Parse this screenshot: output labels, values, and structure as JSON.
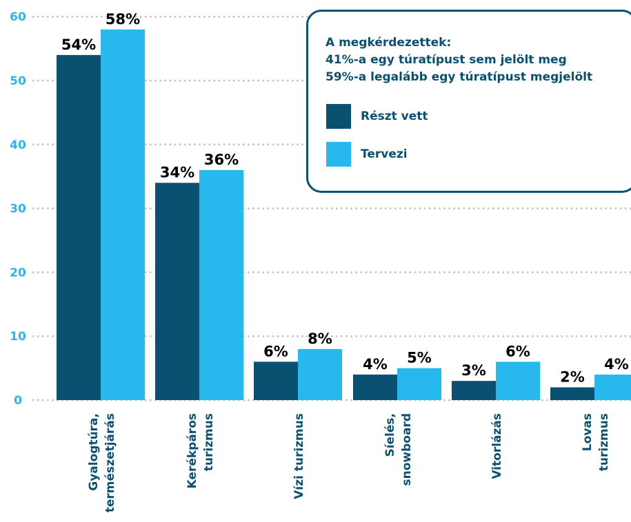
{
  "chart_data": {
    "type": "bar",
    "categories": [
      [
        "Gyalogtúra,",
        "természetjárás"
      ],
      [
        "Kerékpáros",
        "turizmus"
      ],
      [
        "Vízi turizmus"
      ],
      [
        "Síelés,",
        "snowboard"
      ],
      [
        "Vitorlázás"
      ],
      [
        "Lovas",
        "turizmus"
      ]
    ],
    "series": [
      {
        "name": "Részt vett",
        "values": [
          54,
          34,
          6,
          4,
          3,
          2
        ],
        "labels": [
          "54%",
          "34%",
          "6%",
          "4%",
          "3%",
          "2%"
        ],
        "color": "#0a5070"
      },
      {
        "name": "Tervezi",
        "values": [
          58,
          36,
          8,
          5,
          6,
          4
        ],
        "labels": [
          "58%",
          "36%",
          "8%",
          "5%",
          "6%",
          "4%"
        ],
        "color": "#27b8ee"
      }
    ],
    "yticks": [
      0,
      10,
      20,
      30,
      40,
      50,
      60
    ],
    "ylim": [
      0,
      60
    ],
    "grid": true,
    "legend_position": "top-right",
    "title": "",
    "xlabel": "",
    "ylabel": ""
  },
  "legend": {
    "note_lines": [
      "A megkérdezettek:",
      "41%-a egy túratípust sem jelölt meg",
      "59%-a legalább egy túratípust megjelölt"
    ]
  },
  "colors": {
    "axis_text": "#27b8ee",
    "grid": "#c8c8c8",
    "label_text": "#0a5070"
  }
}
